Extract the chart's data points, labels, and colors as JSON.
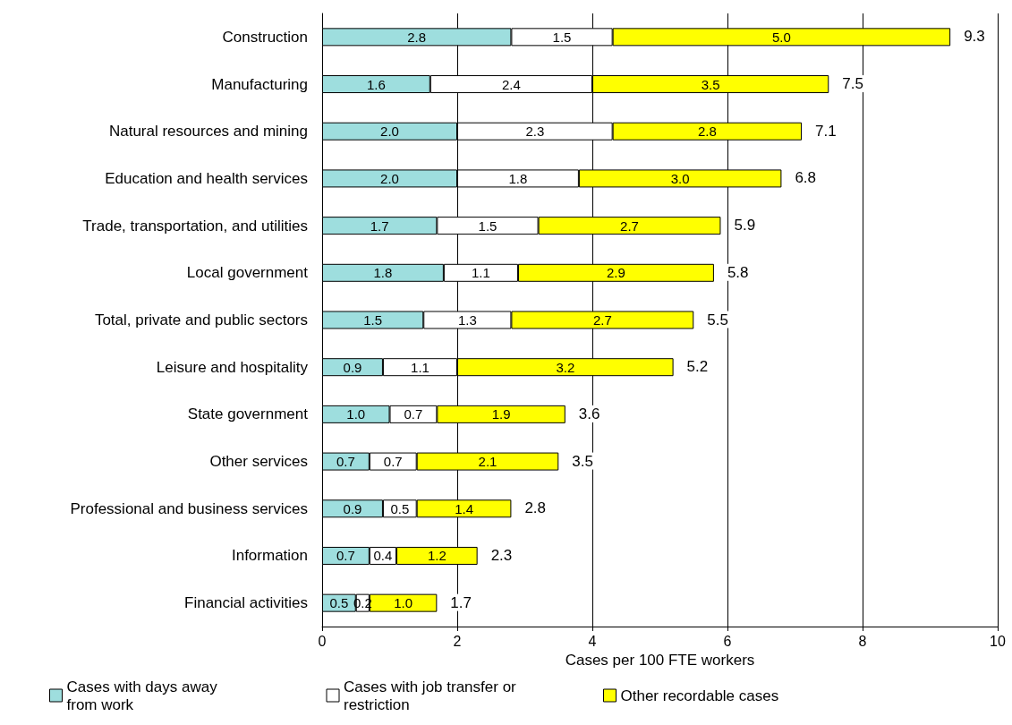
{
  "chart_data": {
    "type": "bar",
    "orientation": "horizontal",
    "stacked": true,
    "xlabel": "Cases per 100 FTE workers",
    "categories": [
      "Construction",
      "Manufacturing",
      "Natural resources and mining",
      "Education and health services",
      "Trade, transportation, and utilities",
      "Local government",
      "Total, private and public sectors",
      "Leisure and hospitality",
      "State government",
      "Other services",
      "Professional and business services",
      "Information",
      "Financial activities"
    ],
    "series": [
      {
        "name": "Cases with days away from work",
        "color": "#9edede",
        "values": [
          2.8,
          1.6,
          2.0,
          2.0,
          1.7,
          1.8,
          1.5,
          0.9,
          1.0,
          0.7,
          0.9,
          0.7,
          0.5
        ],
        "value_labels": [
          "2.8",
          "1.6",
          "2.0",
          "2.0",
          "1.7",
          "1.8",
          "1.5",
          "0.9",
          "1.0",
          "0.7",
          "0.9",
          "0.7",
          "0.5"
        ]
      },
      {
        "name": "Cases with job transfer or restriction",
        "color": "#ffffff",
        "values": [
          1.5,
          2.4,
          2.3,
          1.8,
          1.5,
          1.1,
          1.3,
          1.1,
          0.7,
          0.7,
          0.5,
          0.4,
          0.2
        ],
        "value_labels": [
          "1.5",
          "2.4",
          "2.3",
          "1.8",
          "1.5",
          "1.1",
          "1.3",
          "1.1",
          "0.7",
          "0.7",
          "0.5",
          "0.4",
          "0.2"
        ]
      },
      {
        "name": "Other recordable cases",
        "color": "#ffff00",
        "values": [
          5.0,
          3.5,
          2.8,
          3.0,
          2.7,
          2.9,
          2.7,
          3.2,
          1.9,
          2.1,
          1.4,
          1.2,
          1.0
        ],
        "value_labels": [
          "5.0",
          "3.5",
          "2.8",
          "3.0",
          "2.7",
          "2.9",
          "2.7",
          "3.2",
          "1.9",
          "2.1",
          "1.4",
          "1.2",
          "1.0"
        ]
      }
    ],
    "totals": [
      "9.3",
      "7.5",
      "7.1",
      "6.8",
      "5.9",
      "5.8",
      "5.5",
      "5.2",
      "3.6",
      "3.5",
      "2.8",
      "2.3",
      "1.7"
    ],
    "xlim": [
      0,
      10
    ],
    "xticks": [
      0,
      2,
      4,
      6,
      8,
      10
    ],
    "grid": "x",
    "legend": "bottom"
  }
}
